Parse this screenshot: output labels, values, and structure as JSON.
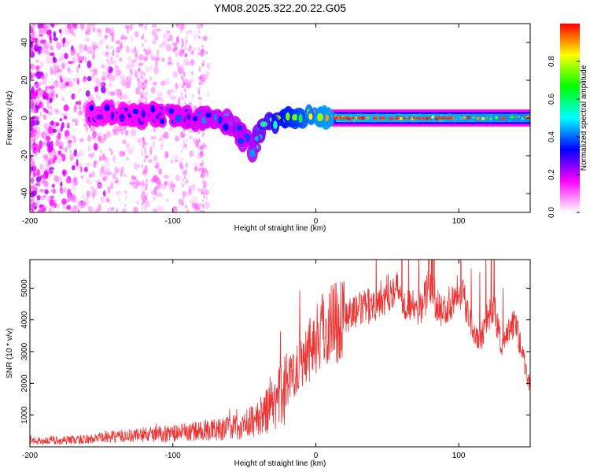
{
  "chart_data": [
    {
      "type": "heatmap",
      "title": "YM08.2025.322.20.22.G05",
      "xlabel": "Height of straight line (km)",
      "ylabel": "Frequency (Hz)",
      "xlim": [
        -200,
        150
      ],
      "ylim": [
        -50,
        50
      ],
      "x_ticks": [
        -200,
        -100,
        0,
        100
      ],
      "x_tick_labels": [
        "-200",
        "-100",
        "0",
        "100"
      ],
      "y_ticks": [
        -40,
        -20,
        0,
        20,
        40
      ],
      "y_tick_labels": [
        "-40",
        "-20",
        "0",
        "20",
        "40"
      ],
      "colorbar": {
        "label": "Normalized spectral amplitude",
        "range": [
          0,
          1
        ],
        "ticks": [
          0.0,
          0.2,
          0.4,
          0.6,
          0.8
        ],
        "tick_labels": [
          "0.0",
          "0.2",
          "0.4",
          "0.6",
          "0.8"
        ],
        "colormap": [
          "#ffffff",
          "#ff00ff",
          "#0000ff",
          "#00ffff",
          "#00ff00",
          "#ffff00",
          "#ff0000"
        ]
      },
      "ridge": [
        {
          "x": -155,
          "freq": 2,
          "amp": 0.3
        },
        {
          "x": -140,
          "freq": 3,
          "amp": 0.32
        },
        {
          "x": -120,
          "freq": 2,
          "amp": 0.33
        },
        {
          "x": -100,
          "freq": 1,
          "amp": 0.35
        },
        {
          "x": -80,
          "freq": 0,
          "amp": 0.38
        },
        {
          "x": -60,
          "freq": -2,
          "amp": 0.4
        },
        {
          "x": -45,
          "freq": -16,
          "amp": 0.42
        },
        {
          "x": -35,
          "freq": -3,
          "amp": 0.55
        },
        {
          "x": -20,
          "freq": 0,
          "amp": 0.7
        },
        {
          "x": 0,
          "freq": 1,
          "amp": 0.85
        },
        {
          "x": 20,
          "freq": 0,
          "amp": 0.9
        },
        {
          "x": 60,
          "freq": 0,
          "amp": 0.9
        },
        {
          "x": 100,
          "freq": 0,
          "amp": 0.88
        },
        {
          "x": 150,
          "freq": 0,
          "amp": 0.85
        }
      ]
    },
    {
      "type": "line",
      "title": "",
      "xlabel": "Height of straight line (km)",
      "ylabel": "SNR (10 * v/v)",
      "xlim": [
        -200,
        150
      ],
      "ylim": [
        0,
        5900
      ],
      "x_ticks": [
        -200,
        -100,
        0,
        100
      ],
      "x_tick_labels": [
        "-200",
        "-100",
        "0",
        "100"
      ],
      "y_ticks": [
        1000,
        2000,
        3000,
        4000,
        5000
      ],
      "y_tick_labels": [
        "1000",
        "2000",
        "3000",
        "4000",
        "5000"
      ],
      "color": "#ee3333",
      "series": [
        {
          "name": "SNR",
          "x": [
            -200,
            -180,
            -160,
            -140,
            -120,
            -100,
            -90,
            -80,
            -70,
            -60,
            -50,
            -40,
            -30,
            -25,
            -20,
            -15,
            -10,
            -5,
            0,
            5,
            10,
            20,
            30,
            40,
            50,
            55,
            60,
            70,
            75,
            80,
            85,
            90,
            95,
            100,
            105,
            110,
            115,
            120,
            125,
            130,
            135,
            140,
            145,
            150
          ],
          "y": [
            180,
            200,
            240,
            320,
            380,
            420,
            460,
            500,
            550,
            600,
            700,
            900,
            1300,
            1600,
            2000,
            2400,
            2800,
            3100,
            3400,
            3700,
            3900,
            4100,
            4300,
            4500,
            4800,
            5100,
            4700,
            4300,
            4500,
            5200,
            4400,
            4300,
            4600,
            5100,
            4500,
            3800,
            3300,
            4200,
            4300,
            3100,
            3700,
            3900,
            2800,
            1900
          ]
        }
      ]
    }
  ]
}
